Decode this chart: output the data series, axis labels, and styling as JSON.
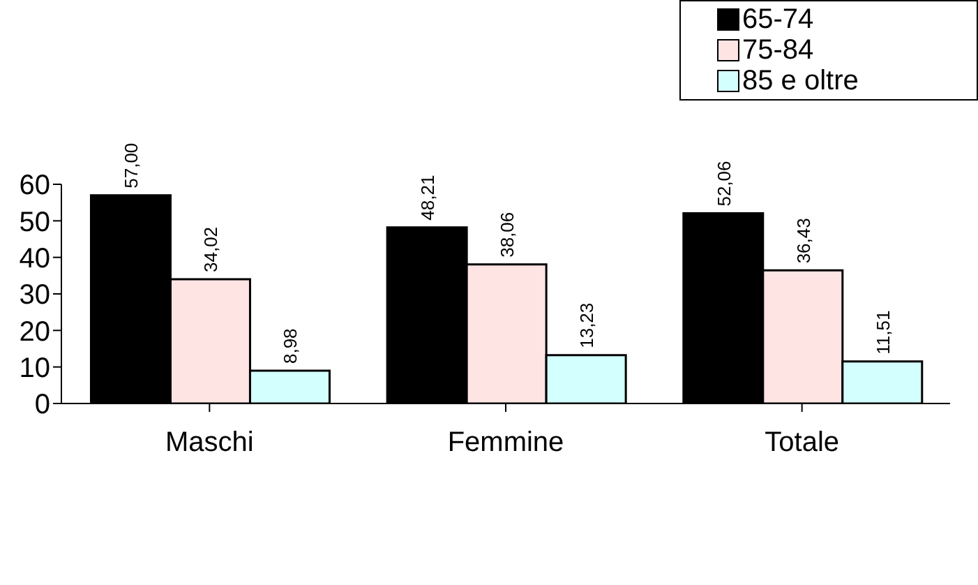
{
  "chart_data": {
    "type": "bar",
    "categories": [
      "Maschi",
      "Femmine",
      "Totale"
    ],
    "series": [
      {
        "name": "65-74",
        "color": "#000000",
        "values": [
          57.0,
          48.21,
          52.06
        ],
        "value_labels": [
          "57,00",
          "48,21",
          "52,06"
        ]
      },
      {
        "name": "75-84",
        "color": "#ffe4e4",
        "values": [
          34.02,
          38.06,
          36.43
        ],
        "value_labels": [
          "34,02",
          "38,06",
          "36,43"
        ]
      },
      {
        "name": "85 e oltre",
        "color": "#d4ffff",
        "values": [
          8.98,
          13.23,
          11.51
        ],
        "value_labels": [
          "8,98",
          "13,23",
          "11,51"
        ]
      }
    ],
    "ylim": [
      0,
      60
    ],
    "yticks": [
      0,
      10,
      20,
      30,
      40,
      50,
      60
    ],
    "grid": false,
    "legend": "top right"
  }
}
